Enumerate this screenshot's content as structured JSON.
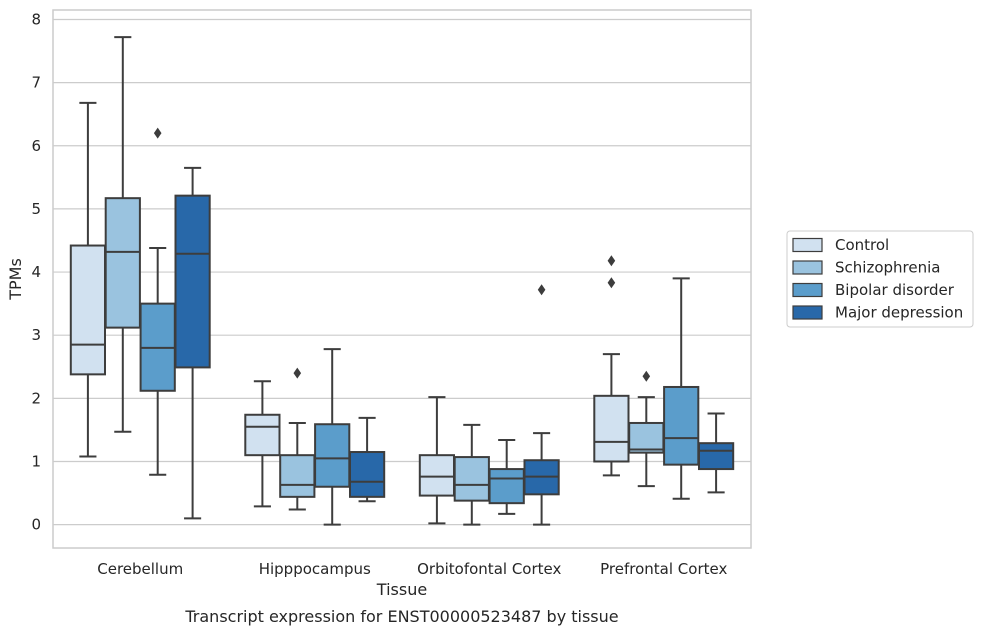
{
  "caption": "Transcript expression for ENST00000523487 by tissue",
  "chart_data": {
    "type": "box",
    "xlabel": "Tissue",
    "ylabel": "TPMs",
    "ylim": [
      -0.37,
      8.15
    ],
    "yticks": [
      "0",
      "1",
      "2",
      "3",
      "4",
      "5",
      "6",
      "7",
      "8"
    ],
    "grid": "horizontal",
    "legend_position": "right",
    "categories": [
      "Cerebellum",
      "Hipppocampus",
      "Orbitofontal Cortex",
      "Prefrontal Cortex"
    ],
    "series": [
      {
        "name": "Control",
        "color": "#d1e1f0",
        "boxes": [
          {
            "whisker_low": 1.08,
            "q1": 2.38,
            "median": 2.85,
            "q3": 4.42,
            "whisker_high": 6.68,
            "outliers": []
          },
          {
            "whisker_low": 0.29,
            "q1": 1.1,
            "median": 1.55,
            "q3": 1.74,
            "whisker_high": 2.27,
            "outliers": []
          },
          {
            "whisker_low": 0.02,
            "q1": 0.46,
            "median": 0.76,
            "q3": 1.1,
            "whisker_high": 2.02,
            "outliers": []
          },
          {
            "whisker_low": 0.78,
            "q1": 1.0,
            "median": 1.31,
            "q3": 2.04,
            "whisker_high": 2.7,
            "outliers": [
              3.83,
              4.18
            ]
          }
        ]
      },
      {
        "name": "Schizophrenia",
        "color": "#9ac3df",
        "boxes": [
          {
            "whisker_low": 1.47,
            "q1": 3.12,
            "median": 4.32,
            "q3": 5.17,
            "whisker_high": 7.72,
            "outliers": []
          },
          {
            "whisker_low": 0.24,
            "q1": 0.44,
            "median": 0.63,
            "q3": 1.1,
            "whisker_high": 1.61,
            "outliers": [
              2.4
            ]
          },
          {
            "whisker_low": 0.0,
            "q1": 0.38,
            "median": 0.63,
            "q3": 1.07,
            "whisker_high": 1.58,
            "outliers": []
          },
          {
            "whisker_low": 0.61,
            "q1": 1.14,
            "median": 1.19,
            "q3": 1.61,
            "whisker_high": 2.02,
            "outliers": [
              2.35
            ]
          }
        ]
      },
      {
        "name": "Bipolar disorder",
        "color": "#5b9dcb",
        "boxes": [
          {
            "whisker_low": 0.79,
            "q1": 2.12,
            "median": 2.8,
            "q3": 3.5,
            "whisker_high": 4.38,
            "outliers": [
              6.2
            ]
          },
          {
            "whisker_low": 0.0,
            "q1": 0.6,
            "median": 1.05,
            "q3": 1.59,
            "whisker_high": 2.78,
            "outliers": []
          },
          {
            "whisker_low": 0.17,
            "q1": 0.34,
            "median": 0.73,
            "q3": 0.88,
            "whisker_high": 1.34,
            "outliers": []
          },
          {
            "whisker_low": 0.41,
            "q1": 0.95,
            "median": 1.37,
            "q3": 2.18,
            "whisker_high": 3.9,
            "outliers": []
          }
        ]
      },
      {
        "name": "Major depression",
        "color": "#2868a9",
        "boxes": [
          {
            "whisker_low": 0.1,
            "q1": 2.49,
            "median": 4.29,
            "q3": 5.21,
            "whisker_high": 5.65,
            "outliers": []
          },
          {
            "whisker_low": 0.37,
            "q1": 0.44,
            "median": 0.68,
            "q3": 1.15,
            "whisker_high": 1.69,
            "outliers": []
          },
          {
            "whisker_low": 0.0,
            "q1": 0.48,
            "median": 0.76,
            "q3": 1.02,
            "whisker_high": 1.45,
            "outliers": [
              3.72
            ]
          },
          {
            "whisker_low": 0.51,
            "q1": 0.88,
            "median": 1.17,
            "q3": 1.29,
            "whisker_high": 1.76,
            "outliers": []
          }
        ]
      }
    ]
  }
}
